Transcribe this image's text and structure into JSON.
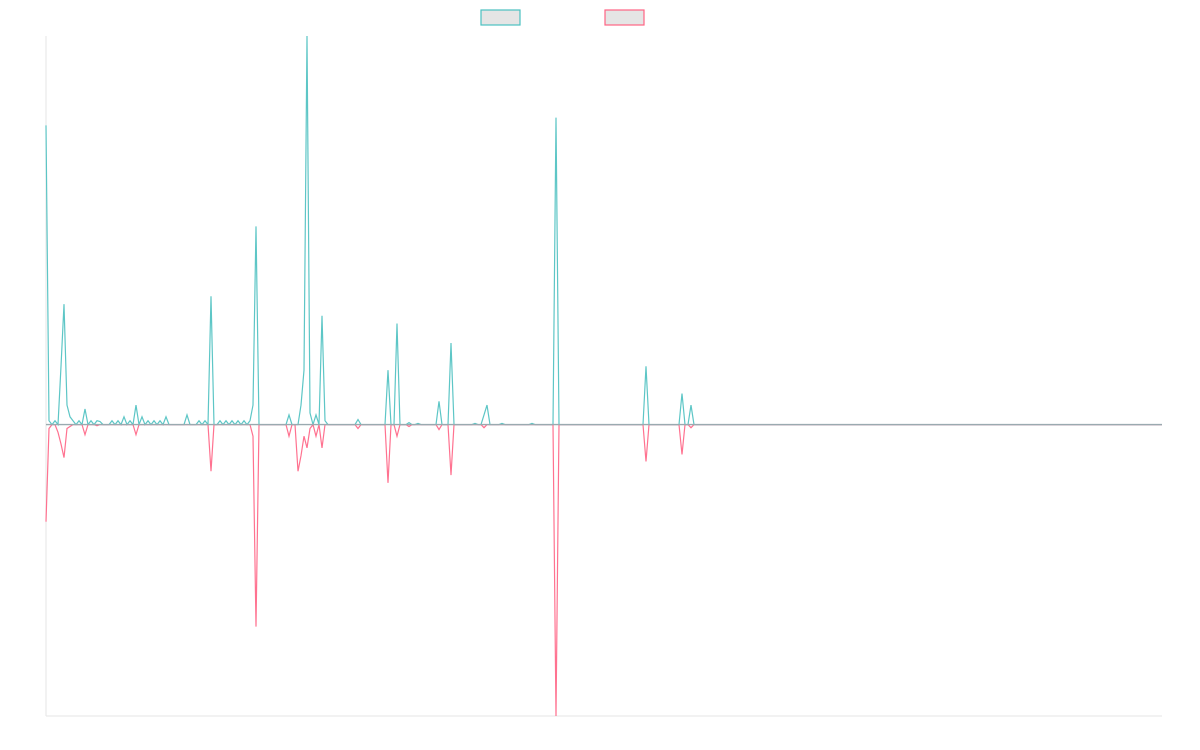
{
  "chart_data": {
    "type": "line",
    "title": "",
    "xlabel": "",
    "ylabel": "",
    "x_range": [
      0,
      372
    ],
    "ylim": [
      -0.75,
      1.0
    ],
    "grid": false,
    "legend": {
      "placement": "top",
      "entries": [
        {
          "label": "",
          "color": "#4bc0c0"
        },
        {
          "label": "",
          "color": "#ff6384"
        }
      ]
    },
    "zero_elsewhere": true,
    "series": [
      {
        "color": "#4bc0c0",
        "points": [
          [
            0,
            0.77
          ],
          [
            1,
            0.01
          ],
          [
            2,
            0.0
          ],
          [
            3,
            0.01
          ],
          [
            4,
            0.0
          ],
          [
            5,
            0.15
          ],
          [
            6,
            0.31
          ],
          [
            7,
            0.05
          ],
          [
            8,
            0.02
          ],
          [
            9,
            0.01
          ],
          [
            11,
            0.01
          ],
          [
            13,
            0.04
          ],
          [
            14,
            0.0
          ],
          [
            15,
            0.01
          ],
          [
            16,
            0.0
          ],
          [
            17,
            0.01
          ],
          [
            18,
            0.008
          ],
          [
            22,
            0.01
          ],
          [
            23,
            0.0
          ],
          [
            24,
            0.01
          ],
          [
            26,
            0.02
          ],
          [
            27,
            0.0
          ],
          [
            28,
            0.01
          ],
          [
            30,
            0.05
          ],
          [
            31,
            0.0
          ],
          [
            32,
            0.02
          ],
          [
            33,
            0.0
          ],
          [
            34,
            0.01
          ],
          [
            36,
            0.01
          ],
          [
            38,
            0.01
          ],
          [
            40,
            0.02
          ],
          [
            47,
            0.025
          ],
          [
            51,
            0.01
          ],
          [
            53,
            0.01
          ],
          [
            55,
            0.33
          ],
          [
            58,
            0.01
          ],
          [
            60,
            0.01
          ],
          [
            62,
            0.01
          ],
          [
            64,
            0.01
          ],
          [
            66,
            0.01
          ],
          [
            68,
            0.01
          ],
          [
            69,
            0.05
          ],
          [
            70,
            0.51
          ],
          [
            81,
            0.025
          ],
          [
            85,
            0.05
          ],
          [
            86,
            0.14
          ],
          [
            87,
            1.0
          ],
          [
            88,
            0.03
          ],
          [
            89,
            0.0
          ],
          [
            90,
            0.025
          ],
          [
            91,
            0.0
          ],
          [
            92,
            0.28
          ],
          [
            93,
            0.01
          ],
          [
            104,
            0.013
          ],
          [
            114,
            0.14
          ],
          [
            115,
            0.0
          ],
          [
            116,
            0.0
          ],
          [
            117,
            0.26
          ],
          [
            118,
            0.0
          ],
          [
            121,
            0.005
          ],
          [
            124,
            0.003
          ],
          [
            131,
            0.06
          ],
          [
            135,
            0.21
          ],
          [
            143,
            0.003
          ],
          [
            146,
            0.025
          ],
          [
            147,
            0.05
          ],
          [
            152,
            0.003
          ],
          [
            162,
            0.003
          ],
          [
            170,
            0.79
          ],
          [
            200,
            0.15
          ],
          [
            212,
            0.08
          ],
          [
            215,
            0.05
          ]
        ]
      },
      {
        "color": "#ff6384",
        "points": [
          [
            0,
            -0.25
          ],
          [
            1,
            -0.01
          ],
          [
            2,
            0.0
          ],
          [
            4,
            -0.02
          ],
          [
            5,
            -0.05
          ],
          [
            6,
            -0.085
          ],
          [
            7,
            -0.01
          ],
          [
            8,
            -0.005
          ],
          [
            13,
            -0.026
          ],
          [
            17,
            -0.003
          ],
          [
            30,
            -0.026
          ],
          [
            55,
            -0.12
          ],
          [
            69,
            -0.03
          ],
          [
            70,
            -0.52
          ],
          [
            81,
            -0.03
          ],
          [
            84,
            -0.12
          ],
          [
            85,
            -0.08
          ],
          [
            86,
            -0.03
          ],
          [
            87,
            -0.06
          ],
          [
            88,
            -0.01
          ],
          [
            90,
            -0.03
          ],
          [
            92,
            -0.06
          ],
          [
            104,
            -0.01
          ],
          [
            114,
            -0.15
          ],
          [
            117,
            -0.03
          ],
          [
            121,
            -0.005
          ],
          [
            131,
            -0.013
          ],
          [
            135,
            -0.13
          ],
          [
            146,
            -0.008
          ],
          [
            170,
            -0.75
          ],
          [
            200,
            -0.095
          ],
          [
            212,
            -0.077
          ],
          [
            215,
            -0.008
          ]
        ]
      }
    ]
  }
}
